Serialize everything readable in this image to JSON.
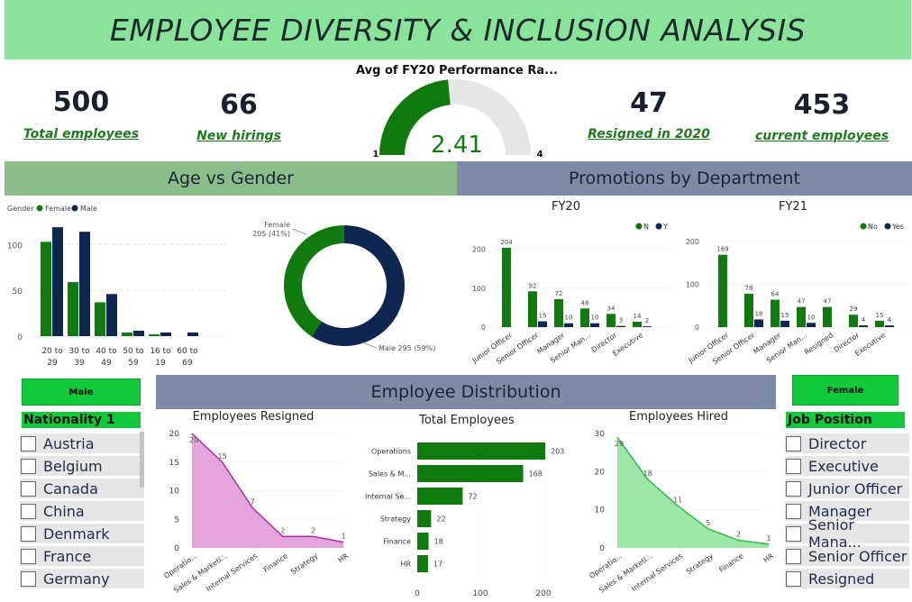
{
  "header": {
    "title": "EMPLOYEE DIVERSITY & INCLUSION ANALYSIS"
  },
  "kpis": [
    {
      "value": "500",
      "label": "Total employees"
    },
    {
      "value": "66",
      "label": "New hirings"
    },
    {
      "value": "47",
      "label": "Resigned in 2020"
    },
    {
      "value": "453",
      "label": "current employees"
    }
  ],
  "gauge": {
    "title": "Avg of FY20 Performance Ra...",
    "value_label": "2.41",
    "min_label": "1",
    "max_label": "4",
    "value": 2.41,
    "min": 1,
    "max": 4
  },
  "sections": {
    "age_gender": "Age vs Gender",
    "promotions": "Promotions by Department",
    "distribution": "Employee Distribution"
  },
  "slicers": {
    "left_button": "Male",
    "right_button": "Female",
    "nationality_header": "Nationality 1",
    "nationality_items": [
      "Austria",
      "Belgium",
      "Canada",
      "China",
      "Denmark",
      "France",
      "Germany"
    ],
    "position_header": "Job Position",
    "position_items": [
      "Director",
      "Executive",
      "Junior Officer",
      "Manager",
      "Senior Mana...",
      "Senior Officer",
      "Resigned"
    ]
  },
  "colors": {
    "green": "#117a0f",
    "navy": "#0f2650",
    "banner": "#8ae39a",
    "band_green": "#8bbd8b",
    "band_slate": "#7d8ba6",
    "pink": "#e4a5dc",
    "light_green": "#9de6a7"
  },
  "chart_data": [
    {
      "type": "bar",
      "id": "age_gender",
      "legend_title": "Gender",
      "categories": [
        "20 to 29",
        "30 to 39",
        "40 to 49",
        "50 to 59",
        "16 to 19",
        "60 to 69"
      ],
      "series": [
        {
          "name": "Female",
          "values": [
            103,
            59,
            37,
            4,
            2,
            0
          ]
        },
        {
          "name": "Male",
          "values": [
            119,
            114,
            46,
            6,
            4,
            4
          ]
        }
      ],
      "ylim": [
        0,
        125
      ],
      "yticks": [
        0,
        50,
        100
      ]
    },
    {
      "type": "pie",
      "id": "gender_donut",
      "slices": [
        {
          "name": "Female",
          "value": 205,
          "label": "Female 205 (41%)"
        },
        {
          "name": "Male",
          "value": 295,
          "label": "Male 295 (59%)"
        }
      ]
    },
    {
      "type": "bar",
      "id": "promotions_fy20",
      "title": "FY20",
      "categories": [
        "Junior Officer",
        "Senior Officer",
        "Manager",
        "Senior Man...",
        "Director",
        "Executive"
      ],
      "series": [
        {
          "name": "N",
          "values": [
            204,
            92,
            72,
            48,
            34,
            14
          ]
        },
        {
          "name": "Y",
          "values": [
            0,
            15,
            10,
            10,
            3,
            2
          ]
        }
      ],
      "ylim": [
        0,
        220
      ],
      "yticks": [
        0,
        100,
        200
      ]
    },
    {
      "type": "bar",
      "id": "promotions_fy21",
      "title": "FY21",
      "categories": [
        "Junior Officer",
        "Senior Officer",
        "Manager",
        "Senior Man...",
        "Resigned",
        "Director",
        "Executive"
      ],
      "series": [
        {
          "name": "No",
          "values": [
            169,
            78,
            64,
            47,
            47,
            29,
            15
          ]
        },
        {
          "name": "Yes",
          "values": [
            0,
            18,
            15,
            10,
            0,
            4,
            4
          ]
        }
      ],
      "ylim": [
        0,
        200
      ],
      "yticks": [
        0,
        100,
        200
      ]
    },
    {
      "type": "area",
      "id": "employees_resigned",
      "title": "Employees Resigned",
      "categories": [
        "Operatio...",
        "Sales & Marketi...",
        "Internal Services",
        "Finance",
        "Strategy",
        "HR"
      ],
      "values": [
        20,
        15,
        7,
        2,
        2,
        1
      ],
      "ylim": [
        0,
        20
      ],
      "yticks": [
        0,
        5,
        10,
        15,
        20
      ]
    },
    {
      "type": "bar",
      "id": "total_employees",
      "title": "Total Employees",
      "orientation": "horizontal",
      "categories": [
        "Operations",
        "Sales & M...",
        "Internal Se...",
        "Strategy",
        "Finance",
        "HR"
      ],
      "values": [
        203,
        168,
        72,
        22,
        18,
        17
      ],
      "xlim": [
        0,
        210
      ],
      "xticks": [
        0,
        100,
        200
      ]
    },
    {
      "type": "area",
      "id": "employees_hired",
      "title": "Employees Hired",
      "categories": [
        "Operatio...",
        "Sales & Marketi...",
        "Internal Services",
        "Strategy",
        "Finance",
        "HR"
      ],
      "values": [
        29,
        18,
        11,
        5,
        2,
        1
      ],
      "ylim": [
        0,
        30
      ],
      "yticks": [
        0,
        10,
        20,
        30
      ]
    }
  ]
}
